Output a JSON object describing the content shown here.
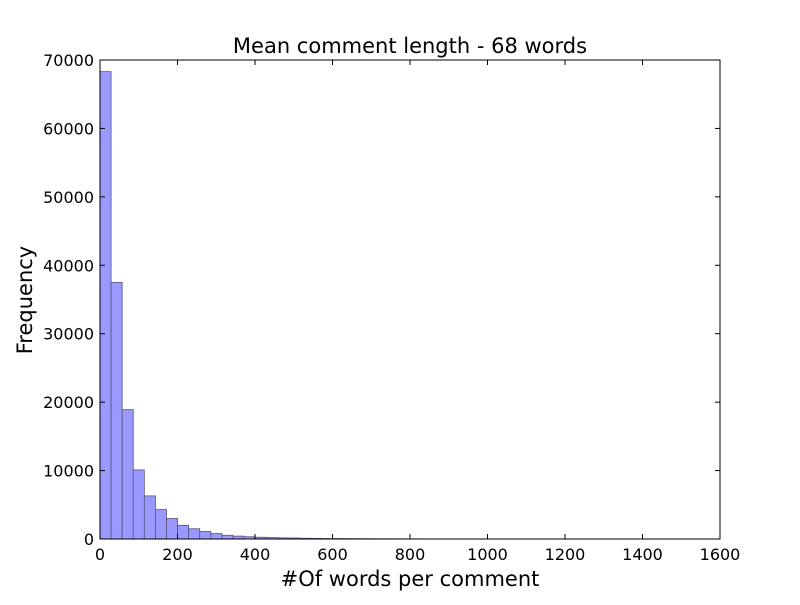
{
  "chart_data": {
    "type": "bar",
    "title": "Mean comment length - 68 words",
    "xlabel": "#Of words per comment",
    "ylabel": "Frequency",
    "xlim": [
      0,
      1600
    ],
    "ylim": [
      0,
      70000
    ],
    "x_ticks": [
      "0",
      "200",
      "400",
      "600",
      "800",
      "1000",
      "1200",
      "1400",
      "1600"
    ],
    "y_ticks": [
      "0",
      "10000",
      "20000",
      "30000",
      "40000",
      "50000",
      "60000",
      "70000"
    ],
    "grid": false,
    "legend": "none",
    "bin_width": 28.6,
    "bins_start": [
      0,
      28.6,
      57.2,
      85.8,
      114.4,
      143,
      171.6,
      200.2,
      228.8,
      257.4,
      286,
      314.6,
      343.2,
      371.8,
      400.4,
      429,
      457.6,
      486.2,
      514.8,
      543.4,
      572,
      600.6,
      629.2,
      657.8,
      686.4,
      715,
      743.6,
      772.2,
      800.8,
      829.4
    ],
    "values": [
      68300,
      37500,
      18900,
      10100,
      6300,
      4300,
      3000,
      2000,
      1500,
      1100,
      800,
      550,
      420,
      330,
      260,
      210,
      170,
      140,
      110,
      90,
      75,
      65,
      55,
      45,
      40,
      35,
      30,
      25,
      20,
      15
    ],
    "colors": {
      "bar_fill": "#9999ff",
      "bar_stroke": "#555577",
      "frame": "#000000"
    }
  }
}
